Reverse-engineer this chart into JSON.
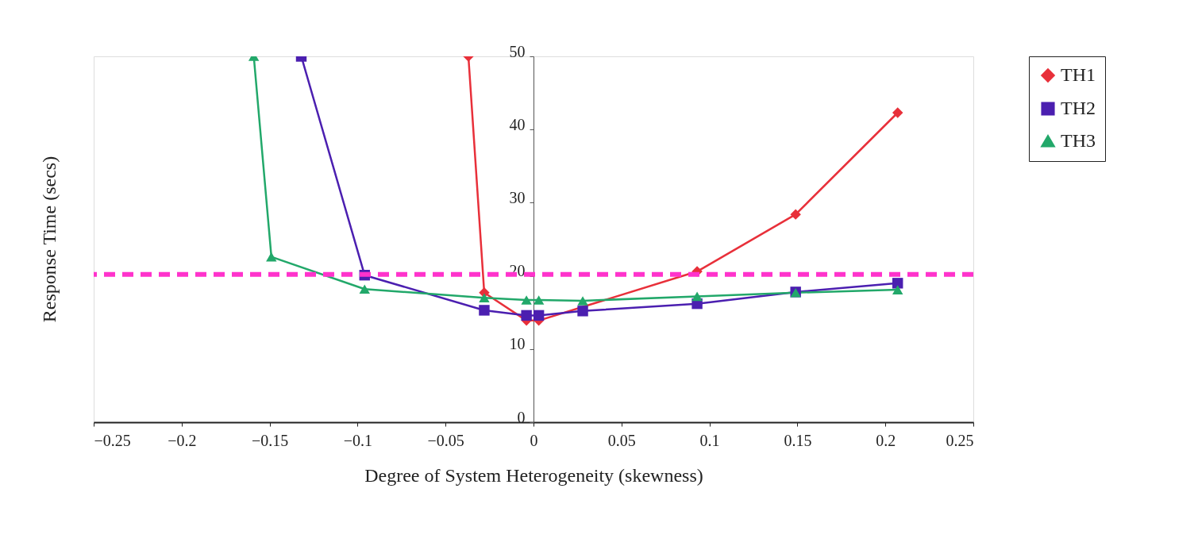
{
  "chart_data": {
    "type": "line",
    "xlabel": "Degree of System Heterogeneity (skewness)",
    "ylabel": "Response Time (secs)",
    "xlim": [
      -0.25,
      0.25
    ],
    "xticks": [
      -0.25,
      -0.2,
      -0.15,
      -0.1,
      -0.05,
      0,
      0.05,
      0.1,
      0.15,
      0.2,
      0.25
    ],
    "ylim": [
      0,
      50
    ],
    "yticks": [
      0,
      10,
      20,
      30,
      40,
      50
    ],
    "grid": false,
    "legend": "right",
    "line_style": "solid",
    "series": [
      {
        "name": "TH1",
        "color": "#e8303a",
        "marker": "diamond",
        "x": [
          -0.037,
          -0.028,
          -0.004,
          0.003,
          0.093,
          0.149,
          0.207
        ],
        "values": [
          50,
          17.7,
          13.9,
          13.9,
          20.6,
          28.4,
          42.3
        ]
      },
      {
        "name": "TH2",
        "color": "#4b1fb0",
        "marker": "square",
        "x": [
          -0.132,
          -0.096,
          -0.028,
          -0.004,
          0.003,
          0.028,
          0.093,
          0.149,
          0.207
        ],
        "values": [
          50,
          20.1,
          15.3,
          14.6,
          14.6,
          15.2,
          16.2,
          17.8,
          19.0
        ]
      },
      {
        "name": "TH3",
        "color": "#22a86a",
        "marker": "triangle",
        "x": [
          -0.159,
          -0.149,
          -0.096,
          -0.028,
          -0.004,
          0.003,
          0.028,
          0.093,
          0.149,
          0.207
        ],
        "values": [
          50,
          22.6,
          18.2,
          17.0,
          16.7,
          16.7,
          16.6,
          17.2,
          17.7,
          18.1
        ]
      }
    ],
    "ref_lines": [
      {
        "axis": "y",
        "value": 20.2,
        "color": "#ff33cc",
        "line_style": "dashed"
      }
    ]
  }
}
